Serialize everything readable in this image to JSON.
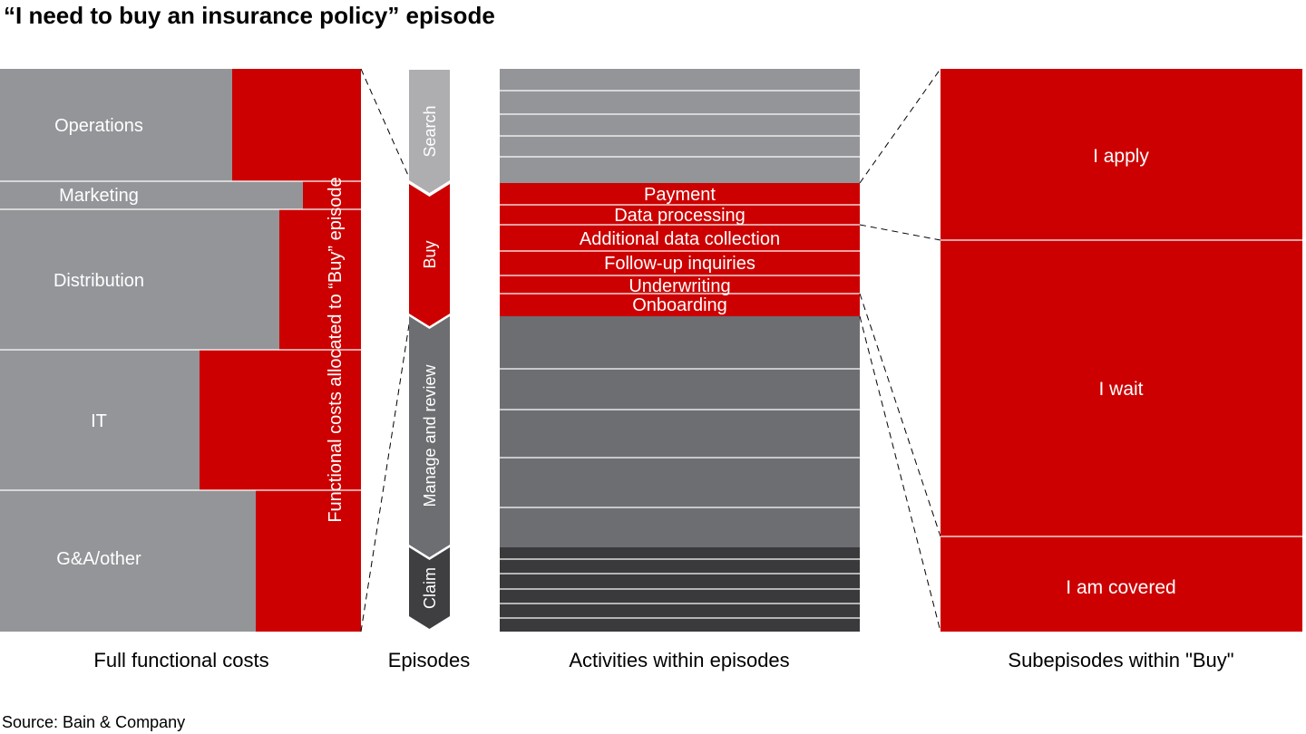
{
  "title": "“I need to buy an insurance policy” episode",
  "colors": {
    "gray": "#949599",
    "red": "#cc0000",
    "episode_search": "#aeaeb0",
    "episode_manage": "#6d6e71",
    "episode_claim": "#3f3f41",
    "activity_top": "#949599",
    "activity_mid": "#6d6e71",
    "activity_bottom": "#3a3a3c"
  },
  "functional_costs": {
    "allocation_label": "Functional costs allocated to “Buy” episode",
    "items": [
      {
        "label": "Operations",
        "allocated_share": 0.36
      },
      {
        "label": "Marketing",
        "allocated_share": 0.16
      },
      {
        "label": "Distribution",
        "allocated_share": 0.225
      },
      {
        "label": "IT",
        "allocated_share": 0.445
      },
      {
        "label": "G&A/other",
        "allocated_share": 0.29
      }
    ]
  },
  "episodes": [
    {
      "label": "Search"
    },
    {
      "label": "Buy"
    },
    {
      "label": "Manage and review"
    },
    {
      "label": "Claim"
    }
  ],
  "activities": {
    "buy": [
      "Payment",
      "Data processing",
      "Additional data collection",
      "Follow-up inquiries",
      "Underwriting",
      "Onboarding"
    ]
  },
  "subepisodes": [
    "I apply",
    "I wait",
    "I am covered"
  ],
  "footer_labels": {
    "functional": "Full functional costs",
    "episodes": "Episodes",
    "activities": "Activities within episodes",
    "subepisodes": "Subepisodes within \"Buy\""
  },
  "source": "Source: Bain & Company"
}
